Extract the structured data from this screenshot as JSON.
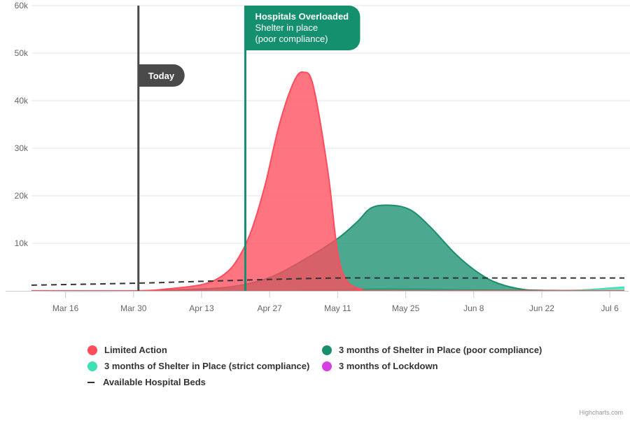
{
  "chart_data": {
    "type": "area",
    "x_axis": {
      "type": "datetime",
      "start": "2020-03-09",
      "end": "2020-07-09",
      "tick_labels": [
        "Mar 16",
        "Mar 30",
        "Apr 13",
        "Apr 27",
        "May 11",
        "May 25",
        "Jun 8",
        "Jun 22",
        "Jul 6"
      ]
    },
    "y_axis": {
      "ylim": [
        0,
        60000
      ],
      "tick_labels": [
        "",
        "10k",
        "20k",
        "30k",
        "40k",
        "50k",
        "60k"
      ],
      "grid": true
    },
    "series": [
      {
        "name": "Limited Action",
        "type": "area",
        "color": "#ff4d5e",
        "points": [
          [
            "2020-03-09",
            0
          ],
          [
            "2020-03-30",
            0
          ],
          [
            "2020-04-06",
            400
          ],
          [
            "2020-04-13",
            1300
          ],
          [
            "2020-04-17",
            3000
          ],
          [
            "2020-04-20",
            6000
          ],
          [
            "2020-04-23",
            12000
          ],
          [
            "2020-04-26",
            22000
          ],
          [
            "2020-04-29",
            35000
          ],
          [
            "2020-05-02",
            44000
          ],
          [
            "2020-05-04",
            46000
          ],
          [
            "2020-05-06",
            43000
          ],
          [
            "2020-05-09",
            25000
          ],
          [
            "2020-05-11",
            8000
          ],
          [
            "2020-05-13",
            2000
          ],
          [
            "2020-05-16",
            300
          ],
          [
            "2020-05-19",
            0
          ],
          [
            "2020-07-09",
            0
          ]
        ]
      },
      {
        "name": "3 months of Shelter in Place (poor compliance)",
        "type": "area",
        "color": "#1a8f6e",
        "points": [
          [
            "2020-03-09",
            0
          ],
          [
            "2020-04-01",
            0
          ],
          [
            "2020-04-13",
            400
          ],
          [
            "2020-04-20",
            1000
          ],
          [
            "2020-04-27",
            2800
          ],
          [
            "2020-05-04",
            6500
          ],
          [
            "2020-05-11",
            11000
          ],
          [
            "2020-05-15",
            14500
          ],
          [
            "2020-05-18",
            17500
          ],
          [
            "2020-05-22",
            18000
          ],
          [
            "2020-05-26",
            17000
          ],
          [
            "2020-05-30",
            13500
          ],
          [
            "2020-06-04",
            8000
          ],
          [
            "2020-06-08",
            4500
          ],
          [
            "2020-06-12",
            2000
          ],
          [
            "2020-06-17",
            500
          ],
          [
            "2020-06-22",
            100
          ],
          [
            "2020-07-09",
            0
          ]
        ]
      },
      {
        "name": "3 months of Shelter in Place (strict compliance)",
        "type": "area",
        "color": "#3ce0b4",
        "points": [
          [
            "2020-03-09",
            0
          ],
          [
            "2020-04-20",
            0
          ],
          [
            "2020-05-11",
            300
          ],
          [
            "2020-05-25",
            400
          ],
          [
            "2020-06-08",
            200
          ],
          [
            "2020-06-22",
            100
          ],
          [
            "2020-06-30",
            150
          ],
          [
            "2020-07-09",
            800
          ]
        ]
      },
      {
        "name": "3 months of Lockdown",
        "type": "area",
        "color": "#d63de2",
        "points": [
          [
            "2020-03-09",
            0
          ],
          [
            "2020-07-09",
            0
          ]
        ]
      },
      {
        "name": "Available Hospital Beds",
        "type": "line",
        "dash": true,
        "color": "#333333",
        "points": [
          [
            "2020-03-09",
            1200
          ],
          [
            "2020-03-30",
            1600
          ],
          [
            "2020-04-13",
            2000
          ],
          [
            "2020-04-27",
            2400
          ],
          [
            "2020-05-11",
            2700
          ],
          [
            "2020-05-25",
            2700
          ],
          [
            "2020-07-09",
            2700
          ]
        ]
      }
    ],
    "plot_lines": [
      {
        "label": "Today",
        "date": "2020-03-31",
        "color": "#4a4a4a"
      },
      {
        "label_title": "Hospitals Overloaded",
        "label_line1": "Shelter in place",
        "label_line2": "(poor compliance)",
        "date": "2020-04-22",
        "color": "#14906e"
      }
    ],
    "legend_placement": "bottom"
  },
  "credits": "Highcharts.com"
}
